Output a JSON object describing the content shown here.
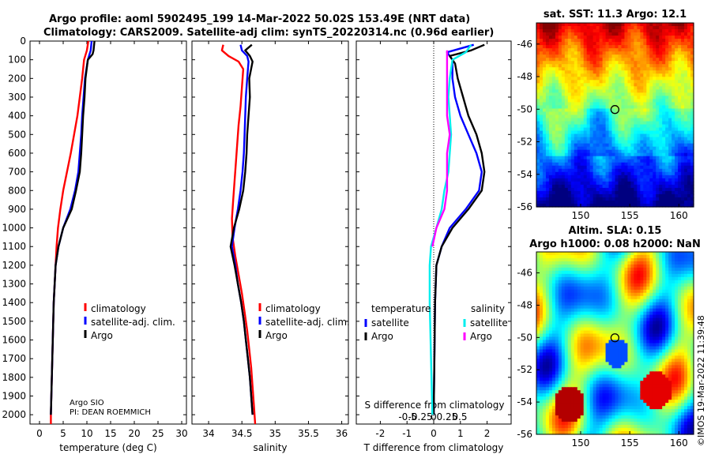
{
  "title": {
    "line1": "Argo profile: aoml 5902495_199 14-Mar-2022 50.02S 153.49E (NRT data)",
    "line2": "Climatology: CARS2009. Satellite-adj clim: synTS_20220314.nc (0.96d earlier)"
  },
  "colors": {
    "climatology": "#ff0000",
    "satellite": "#0000ff",
    "argo": "#000000",
    "sal_satellite": "#00eeee",
    "sal_argo": "#ff00ff"
  },
  "chart_data": [
    {
      "id": "temperature",
      "type": "line",
      "xlabel": "temperature (deg C)",
      "xlim": [
        -2,
        31
      ],
      "xticks": [
        0,
        5,
        10,
        15,
        20,
        25,
        30
      ],
      "ylim": [
        0,
        2050
      ],
      "yticks": [
        0,
        100,
        200,
        300,
        400,
        500,
        600,
        700,
        800,
        900,
        1000,
        1100,
        1200,
        1300,
        1400,
        1500,
        1600,
        1700,
        1800,
        1900,
        2000
      ],
      "legend": [
        "climatology",
        "satellite-adj. clim.",
        "Argo"
      ],
      "note": [
        "Argo SIO",
        "PI: DEAN ROEMMICH"
      ],
      "series": [
        {
          "name": "climatology",
          "color": "#ff0000",
          "points": [
            [
              10.3,
              0
            ],
            [
              10.0,
              50
            ],
            [
              9.4,
              100
            ],
            [
              9.0,
              200
            ],
            [
              8.5,
              300
            ],
            [
              8.0,
              400
            ],
            [
              7.3,
              500
            ],
            [
              6.6,
              600
            ],
            [
              5.8,
              700
            ],
            [
              5.0,
              800
            ],
            [
              4.4,
              900
            ],
            [
              3.9,
              1000
            ],
            [
              3.6,
              1100
            ],
            [
              3.4,
              1200
            ],
            [
              3.2,
              1300
            ],
            [
              3.0,
              1400
            ],
            [
              2.9,
              1500
            ],
            [
              2.8,
              1600
            ],
            [
              2.7,
              1700
            ],
            [
              2.6,
              1800
            ],
            [
              2.5,
              1900
            ],
            [
              2.4,
              2000
            ],
            [
              2.4,
              2050
            ]
          ]
        },
        {
          "name": "satellite-adj. clim.",
          "color": "#0000ff",
          "points": [
            [
              11.0,
              0
            ],
            [
              10.8,
              50
            ],
            [
              10.2,
              100
            ],
            [
              9.6,
              200
            ],
            [
              9.3,
              300
            ],
            [
              9.0,
              400
            ],
            [
              8.8,
              500
            ],
            [
              8.5,
              600
            ],
            [
              8.2,
              700
            ],
            [
              7.5,
              800
            ],
            [
              6.5,
              900
            ],
            [
              5.0,
              1000
            ],
            [
              4.0,
              1100
            ],
            [
              3.4,
              1200
            ],
            [
              3.2,
              1300
            ],
            [
              3.0,
              1400
            ],
            [
              2.9,
              1500
            ],
            [
              2.8,
              1600
            ],
            [
              2.7,
              1700
            ],
            [
              2.6,
              1800
            ],
            [
              2.5,
              1900
            ],
            [
              2.4,
              2000
            ]
          ]
        },
        {
          "name": "Argo",
          "color": "#000000",
          "points": [
            [
              11.6,
              0
            ],
            [
              11.4,
              50
            ],
            [
              11.2,
              70
            ],
            [
              10.2,
              100
            ],
            [
              9.7,
              200
            ],
            [
              9.5,
              300
            ],
            [
              9.2,
              400
            ],
            [
              9.0,
              500
            ],
            [
              8.8,
              600
            ],
            [
              8.5,
              700
            ],
            [
              7.7,
              800
            ],
            [
              6.8,
              900
            ],
            [
              5.0,
              1000
            ],
            [
              4.0,
              1100
            ],
            [
              3.4,
              1200
            ],
            [
              3.2,
              1300
            ],
            [
              3.0,
              1400
            ],
            [
              2.9,
              1500
            ],
            [
              2.8,
              1600
            ],
            [
              2.7,
              1700
            ],
            [
              2.6,
              1800
            ],
            [
              2.5,
              1900
            ],
            [
              2.4,
              2000
            ]
          ]
        }
      ]
    },
    {
      "id": "salinity",
      "type": "line",
      "xlabel": "salinity",
      "xlim": [
        33.75,
        36.1
      ],
      "xticks": [
        34,
        34.5,
        35,
        35.5,
        36
      ],
      "ylim": [
        0,
        2050
      ],
      "legend": [
        "climatology",
        "satellite-adj. clim.",
        "Argo"
      ],
      "series": [
        {
          "name": "climatology",
          "color": "#ff0000",
          "points": [
            [
              34.22,
              20
            ],
            [
              34.2,
              50
            ],
            [
              34.3,
              80
            ],
            [
              34.45,
              110
            ],
            [
              34.52,
              150
            ],
            [
              34.5,
              250
            ],
            [
              34.48,
              350
            ],
            [
              34.45,
              450
            ],
            [
              34.43,
              550
            ],
            [
              34.41,
              650
            ],
            [
              34.39,
              750
            ],
            [
              34.37,
              850
            ],
            [
              34.35,
              950
            ],
            [
              34.36,
              1050
            ],
            [
              34.4,
              1150
            ],
            [
              34.45,
              1250
            ],
            [
              34.5,
              1350
            ],
            [
              34.54,
              1450
            ],
            [
              34.58,
              1550
            ],
            [
              34.61,
              1650
            ],
            [
              34.64,
              1750
            ],
            [
              34.66,
              1850
            ],
            [
              34.68,
              1950
            ],
            [
              34.7,
              2050
            ]
          ]
        },
        {
          "name": "satellite-adj. clim.",
          "color": "#0000ff",
          "points": [
            [
              34.48,
              20
            ],
            [
              34.5,
              50
            ],
            [
              34.58,
              80
            ],
            [
              34.6,
              110
            ],
            [
              34.58,
              200
            ],
            [
              34.56,
              300
            ],
            [
              34.55,
              400
            ],
            [
              34.54,
              500
            ],
            [
              34.53,
              600
            ],
            [
              34.51,
              700
            ],
            [
              34.48,
              800
            ],
            [
              34.44,
              900
            ],
            [
              34.39,
              1000
            ],
            [
              34.35,
              1100
            ],
            [
              34.4,
              1200
            ],
            [
              34.44,
              1300
            ],
            [
              34.49,
              1400
            ],
            [
              34.53,
              1500
            ],
            [
              34.56,
              1600
            ],
            [
              34.59,
              1700
            ],
            [
              34.62,
              1800
            ],
            [
              34.64,
              1900
            ],
            [
              34.66,
              2000
            ]
          ]
        },
        {
          "name": "Argo",
          "color": "#000000",
          "points": [
            [
              34.65,
              20
            ],
            [
              34.55,
              50
            ],
            [
              34.62,
              80
            ],
            [
              34.66,
              110
            ],
            [
              34.61,
              200
            ],
            [
              34.62,
              300
            ],
            [
              34.6,
              400
            ],
            [
              34.58,
              500
            ],
            [
              34.57,
              600
            ],
            [
              34.55,
              700
            ],
            [
              34.52,
              800
            ],
            [
              34.46,
              900
            ],
            [
              34.38,
              1000
            ],
            [
              34.33,
              1100
            ],
            [
              34.39,
              1200
            ],
            [
              34.44,
              1300
            ],
            [
              34.49,
              1400
            ],
            [
              34.53,
              1500
            ],
            [
              34.56,
              1600
            ],
            [
              34.59,
              1700
            ],
            [
              34.62,
              1800
            ],
            [
              34.64,
              1900
            ],
            [
              34.66,
              2000
            ]
          ]
        }
      ]
    },
    {
      "id": "difference",
      "type": "line",
      "xlabel": "T difference from climatology",
      "xlabel_top": "S difference from climatology",
      "xlim": [
        -2.9,
        2.9
      ],
      "xticks": [
        -2,
        -1,
        0,
        1,
        2
      ],
      "xtick_labels_top": [
        "-0.5",
        "-0.25",
        "0",
        "0.25",
        "0.5"
      ],
      "ylim": [
        0,
        2050
      ],
      "legend_left_title": "temperature",
      "legend_right_title": "salinity",
      "legend_left": [
        "satellite",
        "Argo"
      ],
      "legend_right": [
        "satellite",
        "Argo"
      ],
      "series": [
        {
          "name": "T satellite",
          "color": "#0000ff",
          "points": [
            [
              1.5,
              20
            ],
            [
              0.5,
              60
            ],
            [
              0.7,
              100
            ],
            [
              0.7,
              200
            ],
            [
              0.8,
              300
            ],
            [
              1.0,
              400
            ],
            [
              1.3,
              500
            ],
            [
              1.6,
              600
            ],
            [
              1.8,
              700
            ],
            [
              1.7,
              800
            ],
            [
              1.2,
              900
            ],
            [
              0.6,
              1000
            ],
            [
              0.3,
              1100
            ],
            [
              0.1,
              1200
            ],
            [
              0.05,
              1400
            ],
            [
              0.0,
              2000
            ]
          ]
        },
        {
          "name": "T Argo",
          "color": "#000000",
          "points": [
            [
              1.9,
              20
            ],
            [
              1.4,
              50
            ],
            [
              0.6,
              80
            ],
            [
              0.8,
              120
            ],
            [
              0.9,
              200
            ],
            [
              1.1,
              300
            ],
            [
              1.3,
              400
            ],
            [
              1.6,
              500
            ],
            [
              1.8,
              600
            ],
            [
              1.9,
              700
            ],
            [
              1.8,
              800
            ],
            [
              1.3,
              900
            ],
            [
              0.7,
              1000
            ],
            [
              0.3,
              1100
            ],
            [
              0.1,
              1200
            ],
            [
              0.05,
              1400
            ],
            [
              0.0,
              2000
            ]
          ]
        },
        {
          "name": "S satellite",
          "color": "#00eeee",
          "points": [
            [
              1.4,
              20
            ],
            [
              1.2,
              60
            ],
            [
              0.7,
              100
            ],
            [
              0.6,
              200
            ],
            [
              0.55,
              300
            ],
            [
              0.6,
              400
            ],
            [
              0.65,
              500
            ],
            [
              0.6,
              600
            ],
            [
              0.55,
              700
            ],
            [
              0.4,
              800
            ],
            [
              0.3,
              900
            ],
            [
              0.1,
              1000
            ],
            [
              -0.1,
              1100
            ],
            [
              -0.15,
              1200
            ],
            [
              -0.15,
              1400
            ],
            [
              -0.1,
              1700
            ],
            [
              -0.05,
              2000
            ]
          ]
        },
        {
          "name": "S Argo",
          "color": "#ff00ff",
          "points": [
            [
              0.5,
              50
            ],
            [
              0.5,
              100
            ],
            [
              0.5,
              200
            ],
            [
              0.5,
              300
            ],
            [
              0.5,
              400
            ],
            [
              0.6,
              500
            ],
            [
              0.5,
              600
            ],
            [
              0.5,
              700
            ],
            [
              0.5,
              800
            ],
            [
              0.4,
              900
            ],
            [
              0.1,
              1000
            ],
            [
              -0.05,
              1100
            ]
          ]
        }
      ]
    },
    {
      "id": "sst-map",
      "type": "heatmap",
      "title": "sat. SST: 11.3 Argo: 12.1",
      "xlim": [
        145.5,
        161.5
      ],
      "ylim": [
        -56,
        -44.7
      ],
      "xticks": [
        150,
        155,
        160
      ],
      "yticks": [
        -46,
        -48,
        -50,
        -52,
        -54,
        -56
      ],
      "marker": [
        153.49,
        -50.02
      ]
    },
    {
      "id": "sla-map",
      "type": "heatmap",
      "title_line1": "Altim. SLA: 0.15",
      "title_line2": "Argo h1000: 0.08 h2000: NaN",
      "xlim": [
        145.5,
        161.5
      ],
      "ylim": [
        -56,
        -44.7
      ],
      "xticks": [
        150,
        155,
        160
      ],
      "yticks": [
        -46,
        -48,
        -50,
        -52,
        -54,
        -56
      ],
      "marker": [
        153.49,
        -50.02
      ]
    }
  ],
  "side_text": "©IMOS 19-Mar-2022 11:39:48"
}
